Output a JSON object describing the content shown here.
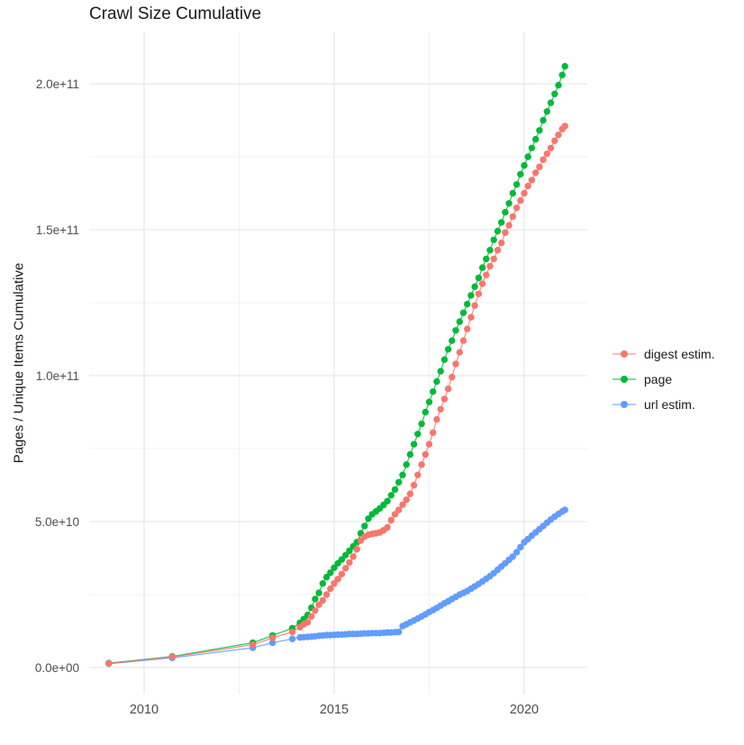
{
  "title": "Crawl Size Cumulative",
  "y_axis": {
    "label": "Pages / Unique Items Cumulative",
    "tick_labels": [
      "0.0e+00",
      "5.0e+10",
      "1.0e+11",
      "1.5e+11",
      "2.0e+11"
    ],
    "tick_values_billions": [
      0,
      50,
      100,
      150,
      200
    ],
    "minor_values_billions": [
      25,
      75,
      125,
      175
    ]
  },
  "x_axis": {
    "tick_labels": [
      "2010",
      "2015",
      "2020"
    ],
    "tick_values": [
      2010,
      2015,
      2020
    ],
    "minor_values": [
      2012.5,
      2017.5
    ]
  },
  "legend": {
    "items": [
      {
        "label": "digest estim.",
        "color": "#F8766D"
      },
      {
        "label": "page",
        "color": "#00BA38"
      },
      {
        "label": "url estim.",
        "color": "#619CFF"
      }
    ]
  },
  "colors": {
    "grid_major": "#e3e3e3",
    "grid_minor": "#f1f1f1",
    "tick_text": "#4d4d4d",
    "title_text": "#1a1a1a"
  },
  "chart_data": {
    "type": "line",
    "title": "Crawl Size Cumulative",
    "xlabel": "",
    "ylabel": "Pages / Unique Items Cumulative",
    "x_unit": "year (decimal)",
    "value_unit": "items",
    "value_scale": 1000000000.0,
    "xlim": [
      2008.5,
      2021.7
    ],
    "ylim_billions": [
      0,
      216
    ],
    "grid": true,
    "legend_position": "right",
    "series": [
      {
        "name": "digest estim.",
        "color": "#F8766D",
        "points": [
          [
            2009.07,
            1.4
          ],
          [
            2010.74,
            3.6
          ],
          [
            2012.86,
            7.8
          ],
          [
            2013.38,
            10.2
          ],
          [
            2013.9,
            12.2
          ],
          [
            2014.1,
            13.8
          ],
          [
            2014.2,
            14.8
          ],
          [
            2014.3,
            15.5
          ],
          [
            2014.4,
            17.5
          ],
          [
            2014.5,
            19.5
          ],
          [
            2014.6,
            21.5
          ],
          [
            2014.7,
            23
          ],
          [
            2014.8,
            25
          ],
          [
            2014.9,
            27
          ],
          [
            2015.0,
            28.8
          ],
          [
            2015.1,
            30.3
          ],
          [
            2015.2,
            32
          ],
          [
            2015.3,
            34
          ],
          [
            2015.4,
            36
          ],
          [
            2015.5,
            38
          ],
          [
            2015.6,
            40.5
          ],
          [
            2015.7,
            43.5
          ],
          [
            2015.8,
            44.8
          ],
          [
            2015.9,
            45.5
          ],
          [
            2016.0,
            45.8
          ],
          [
            2016.1,
            46
          ],
          [
            2016.2,
            46.3
          ],
          [
            2016.3,
            47
          ],
          [
            2016.4,
            48
          ],
          [
            2016.5,
            50.5
          ],
          [
            2016.6,
            52.5
          ],
          [
            2016.7,
            54
          ],
          [
            2016.8,
            55.8
          ],
          [
            2016.9,
            57.5
          ],
          [
            2017.0,
            59.5
          ],
          [
            2017.1,
            62.5
          ],
          [
            2017.2,
            66
          ],
          [
            2017.3,
            69.5
          ],
          [
            2017.4,
            73
          ],
          [
            2017.5,
            76.5
          ],
          [
            2017.6,
            80.5
          ],
          [
            2017.7,
            85
          ],
          [
            2017.8,
            88.5
          ],
          [
            2017.9,
            92
          ],
          [
            2018.0,
            95.5
          ],
          [
            2018.1,
            99.5
          ],
          [
            2018.2,
            104
          ],
          [
            2018.3,
            108
          ],
          [
            2018.4,
            112
          ],
          [
            2018.5,
            116
          ],
          [
            2018.6,
            120
          ],
          [
            2018.7,
            124
          ],
          [
            2018.8,
            128
          ],
          [
            2018.9,
            131.5
          ],
          [
            2019.0,
            134.5
          ],
          [
            2019.1,
            137.5
          ],
          [
            2019.2,
            140
          ],
          [
            2019.3,
            143
          ],
          [
            2019.4,
            145.5
          ],
          [
            2019.5,
            149
          ],
          [
            2019.6,
            151.5
          ],
          [
            2019.7,
            154.5
          ],
          [
            2019.8,
            157.5
          ],
          [
            2019.9,
            160
          ],
          [
            2020.0,
            162.5
          ],
          [
            2020.1,
            165
          ],
          [
            2020.2,
            167
          ],
          [
            2020.3,
            169.5
          ],
          [
            2020.4,
            171.5
          ],
          [
            2020.5,
            174
          ],
          [
            2020.6,
            176
          ],
          [
            2020.7,
            178
          ],
          [
            2020.8,
            180.5
          ],
          [
            2020.9,
            182.5
          ],
          [
            2021.0,
            184.5
          ],
          [
            2021.07,
            185.5
          ]
        ]
      },
      {
        "name": "page",
        "color": "#00BA38",
        "points": [
          [
            2009.07,
            1.5
          ],
          [
            2010.74,
            3.8
          ],
          [
            2012.86,
            8.5
          ],
          [
            2013.38,
            11
          ],
          [
            2013.9,
            13.5
          ],
          [
            2014.1,
            15.3
          ],
          [
            2014.2,
            16.6
          ],
          [
            2014.3,
            18
          ],
          [
            2014.4,
            20.5
          ],
          [
            2014.5,
            23.5
          ],
          [
            2014.6,
            25.6
          ],
          [
            2014.7,
            28.8
          ],
          [
            2014.8,
            31
          ],
          [
            2014.9,
            32.5
          ],
          [
            2015.0,
            34.2
          ],
          [
            2015.1,
            35.7
          ],
          [
            2015.2,
            37
          ],
          [
            2015.3,
            38.5
          ],
          [
            2015.4,
            40
          ],
          [
            2015.5,
            41.5
          ],
          [
            2015.6,
            43
          ],
          [
            2015.7,
            46
          ],
          [
            2015.8,
            48.5
          ],
          [
            2015.9,
            51
          ],
          [
            2016.0,
            52.5
          ],
          [
            2016.1,
            53.5
          ],
          [
            2016.2,
            54.5
          ],
          [
            2016.3,
            55.7
          ],
          [
            2016.4,
            57
          ],
          [
            2016.5,
            59
          ],
          [
            2016.6,
            61
          ],
          [
            2016.7,
            63.5
          ],
          [
            2016.8,
            66
          ],
          [
            2016.9,
            69.5
          ],
          [
            2017.0,
            73
          ],
          [
            2017.1,
            76.5
          ],
          [
            2017.2,
            80
          ],
          [
            2017.3,
            83.5
          ],
          [
            2017.4,
            87.5
          ],
          [
            2017.5,
            91
          ],
          [
            2017.6,
            94.5
          ],
          [
            2017.7,
            98
          ],
          [
            2017.8,
            101.5
          ],
          [
            2017.9,
            105.5
          ],
          [
            2018.0,
            109
          ],
          [
            2018.1,
            112
          ],
          [
            2018.2,
            115.5
          ],
          [
            2018.3,
            118.5
          ],
          [
            2018.4,
            121.5
          ],
          [
            2018.5,
            124.5
          ],
          [
            2018.6,
            127.5
          ],
          [
            2018.7,
            130.5
          ],
          [
            2018.8,
            133.5
          ],
          [
            2018.9,
            137
          ],
          [
            2019.0,
            140
          ],
          [
            2019.1,
            143
          ],
          [
            2019.2,
            146.5
          ],
          [
            2019.3,
            149.5
          ],
          [
            2019.4,
            152.5
          ],
          [
            2019.5,
            156
          ],
          [
            2019.6,
            159
          ],
          [
            2019.7,
            162.5
          ],
          [
            2019.8,
            165.5
          ],
          [
            2019.9,
            169
          ],
          [
            2020.0,
            172
          ],
          [
            2020.1,
            175
          ],
          [
            2020.2,
            178
          ],
          [
            2020.3,
            181
          ],
          [
            2020.4,
            184
          ],
          [
            2020.5,
            187.5
          ],
          [
            2020.6,
            190.5
          ],
          [
            2020.7,
            193.5
          ],
          [
            2020.8,
            196.5
          ],
          [
            2020.9,
            199.5
          ],
          [
            2021.0,
            203
          ],
          [
            2021.07,
            206
          ]
        ]
      },
      {
        "name": "url estim.",
        "color": "#619CFF",
        "points": [
          [
            2009.07,
            1.3
          ],
          [
            2010.74,
            3.3
          ],
          [
            2012.86,
            6.8
          ],
          [
            2013.38,
            8.5
          ],
          [
            2013.9,
            9.8
          ],
          [
            2014.1,
            10.3
          ],
          [
            2014.2,
            10.4
          ],
          [
            2014.3,
            10.5
          ],
          [
            2014.4,
            10.6
          ],
          [
            2014.5,
            10.7
          ],
          [
            2014.6,
            10.9
          ],
          [
            2014.7,
            11
          ],
          [
            2014.8,
            11.1
          ],
          [
            2014.9,
            11.1
          ],
          [
            2015.0,
            11.2
          ],
          [
            2015.1,
            11.3
          ],
          [
            2015.2,
            11.3
          ],
          [
            2015.3,
            11.4
          ],
          [
            2015.4,
            11.5
          ],
          [
            2015.5,
            11.5
          ],
          [
            2015.6,
            11.5
          ],
          [
            2015.7,
            11.6
          ],
          [
            2015.8,
            11.7
          ],
          [
            2015.9,
            11.7
          ],
          [
            2016.0,
            11.8
          ],
          [
            2016.1,
            11.8
          ],
          [
            2016.2,
            11.8
          ],
          [
            2016.3,
            11.9
          ],
          [
            2016.4,
            12
          ],
          [
            2016.5,
            12
          ],
          [
            2016.6,
            12.1
          ],
          [
            2016.7,
            12.2
          ],
          [
            2016.8,
            14.2
          ],
          [
            2016.9,
            14.8
          ],
          [
            2017.0,
            15.5
          ],
          [
            2017.1,
            16.1
          ],
          [
            2017.2,
            16.8
          ],
          [
            2017.3,
            17.5
          ],
          [
            2017.4,
            18.2
          ],
          [
            2017.5,
            19
          ],
          [
            2017.6,
            19.7
          ],
          [
            2017.7,
            20.4
          ],
          [
            2017.8,
            21.2
          ],
          [
            2017.9,
            22
          ],
          [
            2018.0,
            22.7
          ],
          [
            2018.1,
            23.5
          ],
          [
            2018.2,
            24.2
          ],
          [
            2018.3,
            25
          ],
          [
            2018.4,
            25.6
          ],
          [
            2018.5,
            26.2
          ],
          [
            2018.6,
            27
          ],
          [
            2018.7,
            27.8
          ],
          [
            2018.8,
            28.6
          ],
          [
            2018.9,
            29.5
          ],
          [
            2019.0,
            30.4
          ],
          [
            2019.1,
            31.3
          ],
          [
            2019.2,
            32.3
          ],
          [
            2019.3,
            33.5
          ],
          [
            2019.4,
            34.6
          ],
          [
            2019.5,
            35.7
          ],
          [
            2019.6,
            36.9
          ],
          [
            2019.7,
            38
          ],
          [
            2019.8,
            39.5
          ],
          [
            2019.9,
            41.2
          ],
          [
            2020.0,
            42.9
          ],
          [
            2020.1,
            44
          ],
          [
            2020.2,
            45.2
          ],
          [
            2020.3,
            46.3
          ],
          [
            2020.4,
            47.4
          ],
          [
            2020.5,
            48.5
          ],
          [
            2020.6,
            49.6
          ],
          [
            2020.7,
            50.7
          ],
          [
            2020.8,
            51.7
          ],
          [
            2020.9,
            52.6
          ],
          [
            2021.0,
            53.5
          ],
          [
            2021.07,
            54
          ]
        ]
      }
    ]
  }
}
